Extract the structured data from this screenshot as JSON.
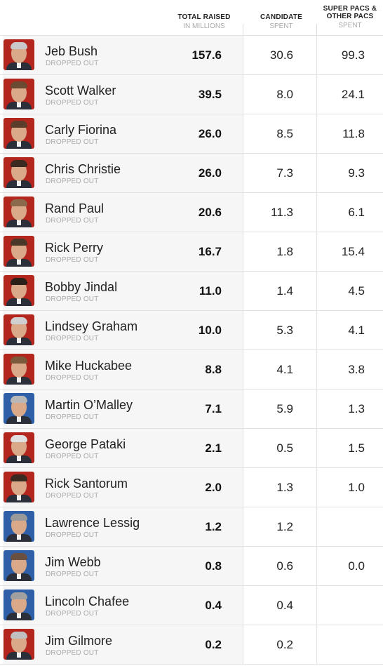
{
  "chart_data": {
    "type": "table",
    "columns": [
      {
        "key": "total",
        "label_line1": "TOTAL RAISED",
        "label_line2": "IN MILLIONS"
      },
      {
        "key": "candidate",
        "label_line1": "CANDIDATE",
        "label_line2": "SPENT"
      },
      {
        "key": "pac",
        "label_line1": "SUPER PACS &",
        "label_line1b": "OTHER PACS",
        "label_line2": "SPENT"
      }
    ],
    "rows": [
      {
        "name": "Jeb Bush",
        "status": "DROPPED OUT",
        "total": "157.6",
        "candidate": "30.6",
        "pac": "99.3",
        "photo_bg": "#b3261e"
      },
      {
        "name": "Scott Walker",
        "status": "DROPPED OUT",
        "total": "39.5",
        "candidate": "8.0",
        "pac": "24.1",
        "photo_bg": "#b3261e"
      },
      {
        "name": "Carly Fiorina",
        "status": "DROPPED OUT",
        "total": "26.0",
        "candidate": "8.5",
        "pac": "11.8",
        "photo_bg": "#b3261e"
      },
      {
        "name": "Chris Christie",
        "status": "DROPPED OUT",
        "total": "26.0",
        "candidate": "7.3",
        "pac": "9.3",
        "photo_bg": "#b3261e"
      },
      {
        "name": "Rand Paul",
        "status": "DROPPED OUT",
        "total": "20.6",
        "candidate": "11.3",
        "pac": "6.1",
        "photo_bg": "#b3261e"
      },
      {
        "name": "Rick Perry",
        "status": "DROPPED OUT",
        "total": "16.7",
        "candidate": "1.8",
        "pac": "15.4",
        "photo_bg": "#b3261e"
      },
      {
        "name": "Bobby Jindal",
        "status": "DROPPED OUT",
        "total": "11.0",
        "candidate": "1.4",
        "pac": "4.5",
        "photo_bg": "#b3261e"
      },
      {
        "name": "Lindsey Graham",
        "status": "DROPPED OUT",
        "total": "10.0",
        "candidate": "5.3",
        "pac": "4.1",
        "photo_bg": "#b3261e"
      },
      {
        "name": "Mike Huckabee",
        "status": "DROPPED OUT",
        "total": "8.8",
        "candidate": "4.1",
        "pac": "3.8",
        "photo_bg": "#b3261e"
      },
      {
        "name": "Martin O’Malley",
        "status": "DROPPED OUT",
        "total": "7.1",
        "candidate": "5.9",
        "pac": "1.3",
        "photo_bg": "#2f5fa7"
      },
      {
        "name": "George Pataki",
        "status": "DROPPED OUT",
        "total": "2.1",
        "candidate": "0.5",
        "pac": "1.5",
        "photo_bg": "#b3261e"
      },
      {
        "name": "Rick Santorum",
        "status": "DROPPED OUT",
        "total": "2.0",
        "candidate": "1.3",
        "pac": "1.0",
        "photo_bg": "#b3261e"
      },
      {
        "name": "Lawrence Lessig",
        "status": "DROPPED OUT",
        "total": "1.2",
        "candidate": "1.2",
        "pac": "",
        "photo_bg": "#2f5fa7"
      },
      {
        "name": "Jim Webb",
        "status": "DROPPED OUT",
        "total": "0.8",
        "candidate": "0.6",
        "pac": "0.0",
        "photo_bg": "#2f5fa7"
      },
      {
        "name": "Lincoln Chafee",
        "status": "DROPPED OUT",
        "total": "0.4",
        "candidate": "0.4",
        "pac": "",
        "photo_bg": "#2f5fa7"
      },
      {
        "name": "Jim Gilmore",
        "status": "DROPPED OUT",
        "total": "0.2",
        "candidate": "0.2",
        "pac": "",
        "photo_bg": "#b3261e"
      }
    ]
  },
  "colors": {
    "republican": "#b3261e",
    "democrat": "#2f5fa7",
    "row_shade": "#f6f6f6",
    "muted_text": "#aaaaaa"
  }
}
